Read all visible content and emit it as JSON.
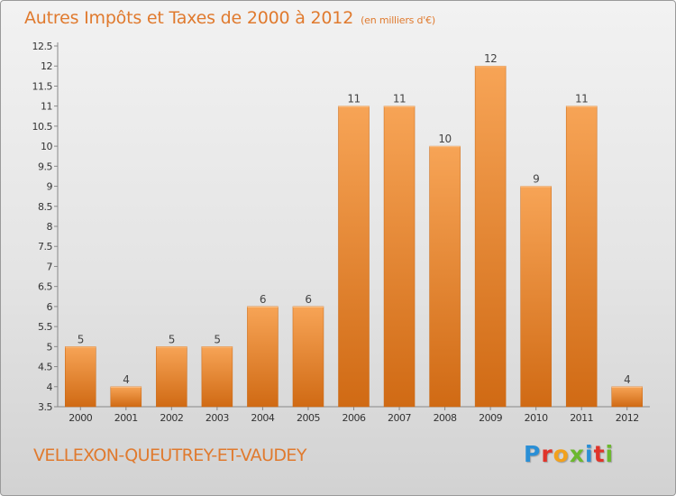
{
  "header": {
    "title": "Autres Impôts et Taxes de 2000 à 2012",
    "unit": "(en milliers d'€)"
  },
  "footer": {
    "commune": "VELLEXON-QUEUTREY-ET-VAUDEY",
    "logo": [
      "P",
      "r",
      "o",
      "x",
      "i",
      "t",
      "i"
    ]
  },
  "colors": {
    "bar_top": "#f7a456",
    "bar_bottom": "#d06a14",
    "title": "#e07a2e"
  },
  "chart_data": {
    "type": "bar",
    "categories": [
      "2000",
      "2001",
      "2002",
      "2003",
      "2004",
      "2005",
      "2006",
      "2007",
      "2008",
      "2009",
      "2010",
      "2011",
      "2012"
    ],
    "values": [
      5,
      4,
      5,
      5,
      6,
      6,
      11,
      11,
      10,
      12,
      9,
      11,
      4
    ],
    "value_labels": [
      "5",
      "4",
      "5",
      "5",
      "6",
      "6",
      "11",
      "11",
      "10",
      "12",
      "9",
      "11",
      "4"
    ],
    "title": "Autres Impôts et Taxes de 2000 à 2012",
    "xlabel": "",
    "ylabel": "",
    "ylim": [
      3.5,
      12.5
    ],
    "yticks": [
      "3.5",
      "4",
      "4.5",
      "5",
      "5.5",
      "6",
      "6.5",
      "7",
      "7.5",
      "8",
      "8.5",
      "9",
      "9.5",
      "10",
      "10.5",
      "11",
      "11.5",
      "12",
      "12.5"
    ],
    "grid": false,
    "legend": "none"
  }
}
